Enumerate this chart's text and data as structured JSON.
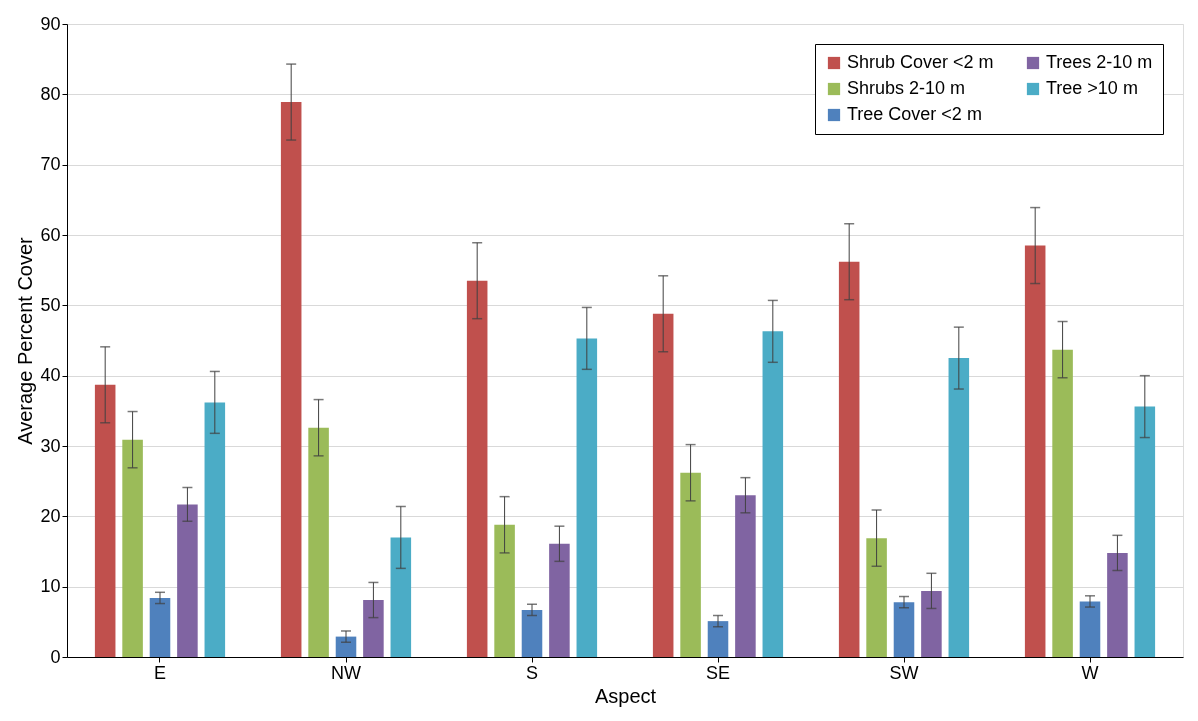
{
  "chart_data": {
    "type": "bar",
    "xlabel": "Aspect",
    "ylabel": "Average Percent Cover",
    "categories": [
      "E",
      "NW",
      "S",
      "SE",
      "SW",
      "W"
    ],
    "series": [
      {
        "name": "Shrub Cover <2 m",
        "color": "#c0504d",
        "values": [
          38.7,
          78.9,
          53.5,
          48.8,
          56.2,
          58.5
        ],
        "errors": [
          5.4,
          5.4,
          5.4,
          5.4,
          5.4,
          5.4
        ]
      },
      {
        "name": "Shrubs 2-10 m",
        "color": "#9bbb59",
        "values": [
          30.9,
          32.6,
          18.8,
          26.2,
          16.9,
          43.7
        ],
        "errors": [
          4,
          4,
          4,
          4,
          4,
          4
        ]
      },
      {
        "name": "Tree Cover <2 m",
        "color": "#4f81bd",
        "values": [
          8.4,
          2.9,
          6.7,
          5.1,
          7.8,
          7.9
        ],
        "errors": [
          0.8,
          0.8,
          0.8,
          0.8,
          0.8,
          0.8
        ]
      },
      {
        "name": "Trees 2-10 m",
        "color": "#8064a2",
        "values": [
          21.7,
          8.1,
          16.1,
          23.0,
          9.4,
          14.8
        ],
        "errors": [
          2.4,
          2.5,
          2.5,
          2.5,
          2.5,
          2.5
        ]
      },
      {
        "name": "Tree >10 m",
        "color": "#4bacc6",
        "values": [
          36.2,
          17.0,
          45.3,
          46.3,
          42.5,
          35.6
        ],
        "errors": [
          4.4,
          4.4,
          4.4,
          4.4,
          4.4,
          4.4
        ]
      }
    ],
    "ylim": [
      0,
      90
    ],
    "yticks": [
      0,
      10,
      20,
      30,
      40,
      50,
      60,
      70,
      80,
      90
    ],
    "grid": "y",
    "legend": "top right"
  }
}
